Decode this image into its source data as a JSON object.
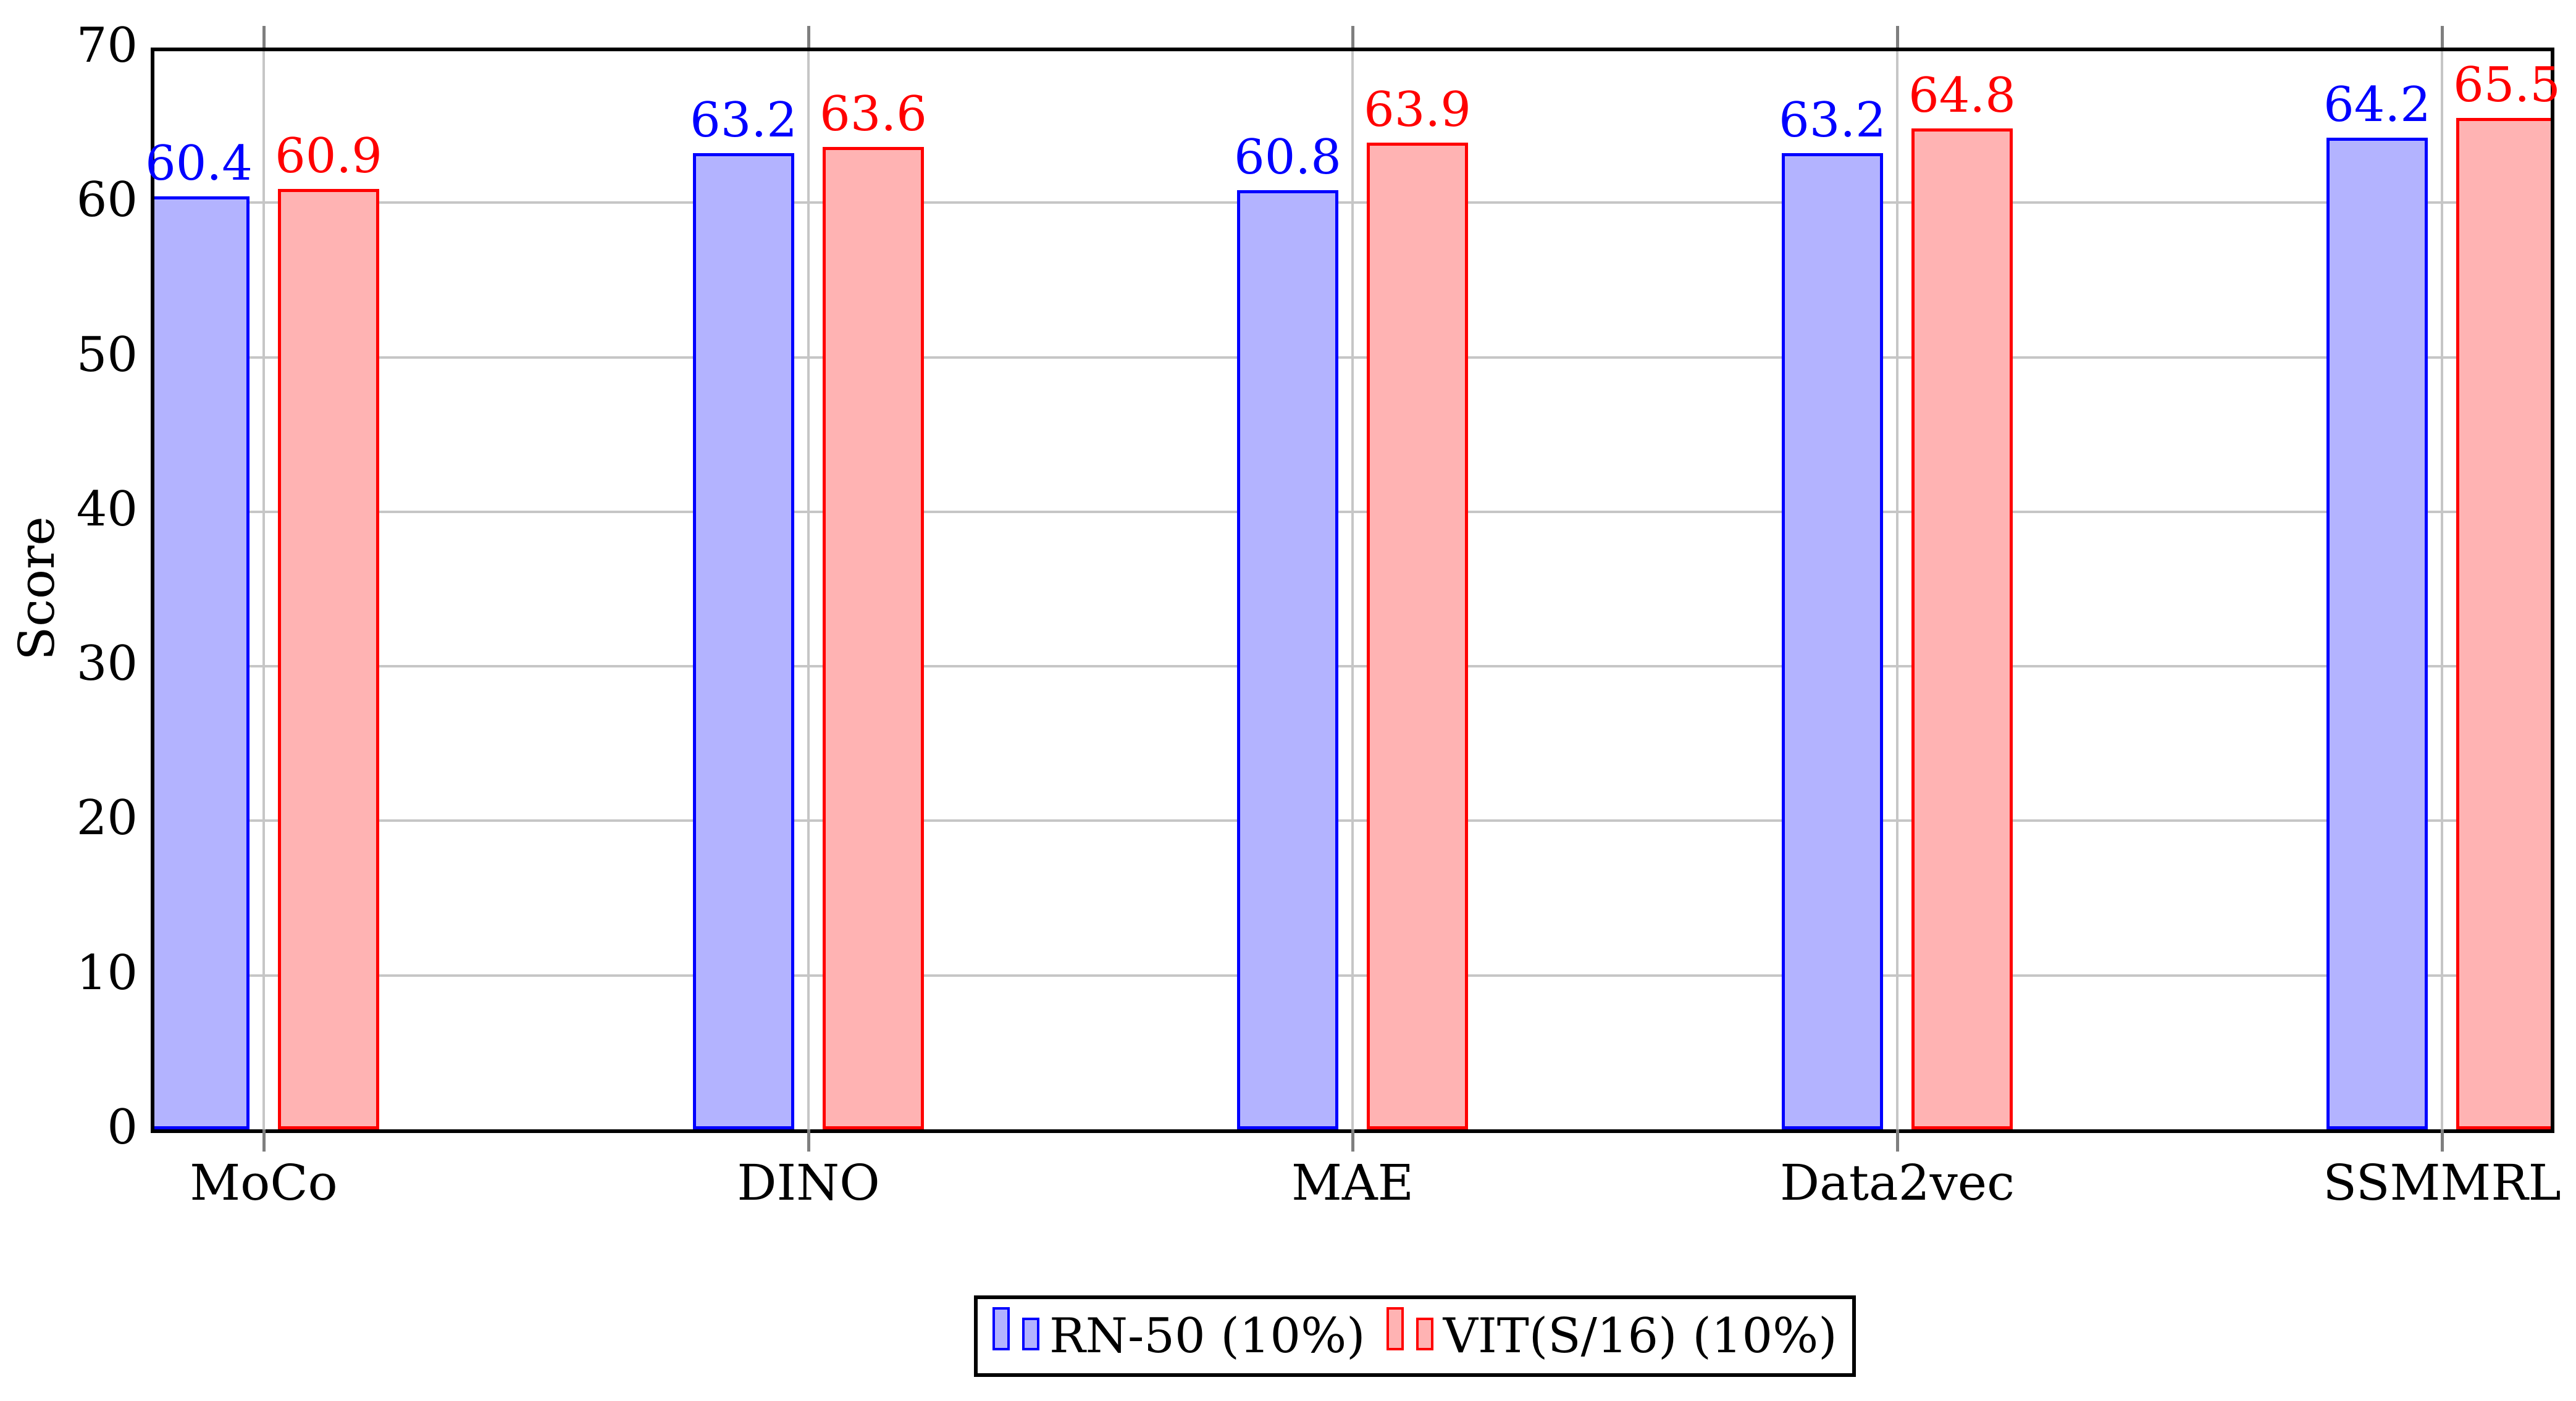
{
  "chart_data": {
    "type": "bar",
    "title": "",
    "xlabel": "",
    "ylabel": "Score",
    "categories": [
      "MoCo",
      "DINO",
      "MAE",
      "Data2vec",
      "SSMMRL"
    ],
    "series": [
      {
        "name": "RN-50 (10%)",
        "color": "#0000ff",
        "fill": "#b3b3ff",
        "values": [
          60.4,
          63.2,
          60.8,
          63.2,
          64.2
        ]
      },
      {
        "name": "VIT(S/16) (10%)",
        "color": "#ff0000",
        "fill": "#ffb3b3",
        "values": [
          60.9,
          63.6,
          63.9,
          64.8,
          65.5
        ]
      }
    ],
    "ylim": [
      0,
      70
    ],
    "yticks": [
      0,
      10,
      20,
      30,
      40,
      50,
      60,
      70
    ],
    "bar_value_labels": true,
    "grid": {
      "horizontal": true,
      "vertical": true,
      "color": "#c6c6c6"
    },
    "axis": {
      "frame_color": "#000000",
      "tick_color": "#7f7f7f"
    },
    "legend_position": "bottom-center"
  }
}
